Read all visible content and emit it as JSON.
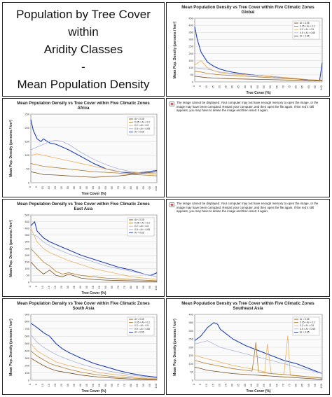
{
  "header": {
    "title_lines": [
      "Population by Tree Cover",
      "within",
      "Aridity Classes",
      "-",
      "Mean Population Density"
    ]
  },
  "error_message": "The image cannot be displayed. Your computer may not have enough memory to open the image, or the image may have been corrupted. Restart your computer, and then open the file again. If the red x still appears, you may have to delete the image and then insert it again.",
  "chart_data": [
    {
      "type": "line",
      "title": "Mean Population Density vs Tree Cover within Five Climatic Zones",
      "subtitle": "Global",
      "xlabel": "Tree Cover (%)",
      "ylabel": "Mean Pop. Density (persons / km²)",
      "xlim": [
        0,
        100
      ],
      "ylim": [
        0,
        450
      ],
      "yticks": [
        0,
        50,
        100,
        150,
        200,
        250,
        300,
        350,
        400,
        450
      ],
      "xticks": [
        0,
        5,
        10,
        15,
        20,
        25,
        30,
        35,
        40,
        45,
        50,
        55,
        60,
        65,
        70,
        75,
        80,
        85,
        90,
        95,
        100
      ],
      "grid": true,
      "legend_position": "top-right",
      "legend_entries": [
        "AI < 0.05",
        "0.05 < AI < 0.2",
        "0.2 < AI < 0.5",
        "0.5 < AI < 0.65",
        "AI > 0.65"
      ],
      "series": [
        {
          "color": "#1f3fb4",
          "x": [
            0,
            2,
            5,
            10,
            15,
            20,
            25,
            30,
            40,
            50,
            60,
            70,
            80,
            90,
            95,
            98,
            100
          ],
          "values": [
            390,
            300,
            210,
            140,
            110,
            90,
            78,
            68,
            55,
            45,
            38,
            30,
            22,
            12,
            8,
            10,
            135
          ]
        },
        {
          "color": "#aab4d8",
          "x": [
            0,
            5,
            10,
            15,
            20,
            30,
            40,
            50,
            60,
            70,
            80,
            90,
            100
          ],
          "values": [
            100,
            95,
            90,
            80,
            70,
            60,
            52,
            45,
            38,
            30,
            22,
            14,
            8
          ]
        },
        {
          "color": "#e8b060",
          "x": [
            0,
            5,
            10,
            15,
            20,
            30,
            40,
            50,
            60,
            70,
            80,
            90,
            100
          ],
          "values": [
            120,
            150,
            100,
            80,
            65,
            55,
            50,
            45,
            40,
            32,
            25,
            15,
            10
          ]
        },
        {
          "color": "#b07c2c",
          "x": [
            0,
            5,
            10,
            15,
            20,
            30,
            40,
            50,
            60,
            70,
            80,
            90,
            100
          ],
          "values": [
            75,
            70,
            60,
            55,
            50,
            45,
            40,
            35,
            30,
            25,
            20,
            15,
            12
          ]
        },
        {
          "color": "#7a5020",
          "x": [
            0,
            5,
            10,
            15,
            20,
            30,
            40,
            50,
            60,
            70,
            80,
            90,
            100
          ],
          "values": [
            40,
            35,
            30,
            28,
            25,
            22,
            20,
            18,
            16,
            14,
            12,
            10,
            8
          ]
        }
      ]
    },
    {
      "type": "line",
      "title": "Mean Population Density vs Tree Cover within Five Climatic Zones",
      "subtitle": "Africa",
      "xlabel": "Tree Cover (%)",
      "ylabel": "Mean Pop. Density (persons / km²)",
      "xlim": [
        0,
        100
      ],
      "ylim": [
        0,
        250
      ],
      "yticks": [
        0,
        50,
        100,
        150,
        200,
        250
      ],
      "xticks": [
        0,
        5,
        10,
        15,
        20,
        25,
        30,
        35,
        40,
        45,
        50,
        55,
        60,
        65,
        70,
        75,
        80,
        85,
        90,
        95,
        100
      ],
      "grid": true,
      "legend_position": "top-right",
      "legend_entries": [
        "AI < 0.05",
        "0.05 < AI < 0.2",
        "0.2 < AI < 0.5",
        "0.5 < AI < 0.65",
        "AI > 0.65"
      ],
      "series": [
        {
          "color": "#1f3fb4",
          "x": [
            0,
            2,
            5,
            8,
            10,
            15,
            20,
            25,
            30,
            40,
            50,
            60,
            70,
            80,
            90,
            100
          ],
          "values": [
            230,
            190,
            160,
            150,
            160,
            145,
            140,
            130,
            120,
            95,
            70,
            50,
            40,
            35,
            38,
            45
          ]
        },
        {
          "color": "#aab4d8",
          "x": [
            0,
            5,
            10,
            15,
            20,
            25,
            30,
            40,
            50,
            60,
            70,
            80,
            90,
            100
          ],
          "values": [
            120,
            130,
            140,
            150,
            155,
            150,
            140,
            110,
            85,
            65,
            50,
            40,
            35,
            35
          ]
        },
        {
          "color": "#e8b060",
          "x": [
            0,
            5,
            10,
            15,
            20,
            30,
            40,
            50,
            60,
            70,
            80,
            90,
            100
          ],
          "values": [
            100,
            105,
            100,
            95,
            90,
            80,
            70,
            60,
            50,
            40,
            38,
            35,
            30
          ]
        },
        {
          "color": "#b07c2c",
          "x": [
            0,
            5,
            10,
            20,
            30,
            40,
            50,
            60,
            70,
            80,
            90,
            100
          ],
          "values": [
            70,
            65,
            60,
            55,
            50,
            45,
            40,
            38,
            35,
            30,
            28,
            25
          ]
        },
        {
          "color": "#7a5020",
          "x": [
            0,
            5,
            10,
            20,
            30,
            40,
            50,
            60,
            70,
            80,
            90,
            100
          ],
          "values": [
            40,
            35,
            30,
            28,
            25,
            22,
            20,
            22,
            25,
            30,
            35,
            40
          ]
        }
      ]
    },
    {
      "type": "line",
      "title": "Mean Population Density vs Tree Cover within Five Climatic Zones",
      "subtitle": "East Asia",
      "xlabel": "Tree Cover (%)",
      "ylabel": "Mean Pop. Density (persons / km²)",
      "xlim": [
        0,
        100
      ],
      "ylim": [
        0,
        500
      ],
      "yticks": [
        0,
        50,
        100,
        150,
        200,
        250,
        300,
        350,
        400,
        450,
        500
      ],
      "xticks": [
        0,
        5,
        10,
        15,
        20,
        25,
        30,
        35,
        40,
        45,
        50,
        55,
        60,
        65,
        70,
        75,
        80,
        85,
        90,
        95,
        100
      ],
      "grid": true,
      "legend_position": "top-right",
      "legend_entries": [
        "AI < 0.05",
        "0.05 < AI < 0.2",
        "0.2 < AI < 0.5",
        "0.5 < AI < 0.65",
        "AI > 0.65"
      ],
      "series": [
        {
          "color": "#1f3fb4",
          "x": [
            0,
            3,
            5,
            10,
            15,
            20,
            25,
            30,
            40,
            50,
            60,
            70,
            80,
            90,
            95,
            100
          ],
          "values": [
            420,
            450,
            380,
            330,
            300,
            280,
            260,
            240,
            200,
            170,
            140,
            110,
            90,
            60,
            50,
            70
          ]
        },
        {
          "color": "#aab4d8",
          "x": [
            0,
            5,
            10,
            15,
            20,
            30,
            40,
            50,
            60,
            70,
            80,
            90,
            100
          ],
          "values": [
            360,
            340,
            300,
            270,
            250,
            210,
            180,
            150,
            120,
            100,
            80,
            60,
            40
          ]
        },
        {
          "color": "#e8b060",
          "x": [
            0,
            5,
            10,
            15,
            20,
            30,
            40,
            50,
            60,
            70,
            80,
            90,
            100
          ],
          "values": [
            400,
            300,
            250,
            220,
            200,
            160,
            130,
            100,
            80,
            60,
            40,
            30,
            20
          ]
        },
        {
          "color": "#b07c2c",
          "x": [
            0,
            5,
            10,
            15,
            20,
            25,
            30,
            40,
            50,
            60,
            70,
            80,
            90,
            100
          ],
          "values": [
            250,
            200,
            150,
            120,
            80,
            60,
            70,
            50,
            40,
            30,
            25,
            20,
            15,
            10
          ]
        },
        {
          "color": "#7a5020",
          "x": [
            0,
            5,
            10,
            15,
            20,
            25,
            30,
            35,
            40,
            50,
            60,
            70,
            80,
            90,
            100
          ],
          "values": [
            150,
            100,
            60,
            90,
            50,
            40,
            60,
            45,
            30,
            20,
            15,
            12,
            10,
            8,
            5
          ]
        }
      ]
    },
    {
      "type": "line",
      "title": "Mean Population Density vs Tree Cover within Five Climatic Zones",
      "subtitle": "South Asia",
      "xlabel": "Tree Cover (%)",
      "ylabel": "Mean Pop. Density (persons / km²)",
      "xlim": [
        0,
        100
      ],
      "ylim": [
        0,
        900
      ],
      "yticks": [
        0,
        100,
        200,
        300,
        400,
        500,
        600,
        700,
        800,
        900
      ],
      "xticks": [
        0,
        5,
        10,
        15,
        20,
        25,
        30,
        35,
        40,
        45,
        50,
        55,
        60,
        65,
        70,
        75,
        80,
        85,
        90,
        95,
        100
      ],
      "grid": true,
      "legend_position": "top-right",
      "legend_entries": [
        "AI < 0.05",
        "0.05 < AI < 0.2",
        "0.2 < AI < 0.5",
        "0.5 < AI < 0.65",
        "AI > 0.65"
      ],
      "series": [
        {
          "color": "#1f3fb4",
          "x": [
            0,
            5,
            10,
            15,
            20,
            25,
            30,
            40,
            50,
            60,
            70,
            80,
            90,
            100
          ],
          "values": [
            780,
            720,
            650,
            600,
            500,
            430,
            380,
            300,
            230,
            180,
            130,
            90,
            60,
            40
          ]
        },
        {
          "color": "#aab4d8",
          "x": [
            0,
            5,
            10,
            15,
            20,
            30,
            40,
            50,
            60,
            70,
            80,
            90,
            100
          ],
          "values": [
            620,
            520,
            450,
            400,
            350,
            280,
            220,
            170,
            130,
            100,
            70,
            50,
            30
          ]
        },
        {
          "color": "#e8b060",
          "x": [
            0,
            5,
            10,
            15,
            20,
            30,
            40,
            50,
            60,
            70,
            80,
            90,
            100
          ],
          "values": [
            500,
            400,
            350,
            300,
            250,
            200,
            160,
            120,
            90,
            70,
            50,
            30,
            20
          ]
        },
        {
          "color": "#b07c2c",
          "x": [
            0,
            5,
            10,
            15,
            20,
            30,
            40,
            50,
            60,
            70,
            80,
            90,
            100
          ],
          "values": [
            400,
            330,
            280,
            230,
            200,
            150,
            110,
            80,
            60,
            40,
            30,
            20,
            10
          ]
        },
        {
          "color": "#7a5020",
          "x": [
            0,
            5,
            10,
            15,
            20,
            30,
            40,
            50,
            60,
            70,
            80,
            90,
            100
          ],
          "values": [
            300,
            250,
            200,
            160,
            130,
            100,
            70,
            50,
            35,
            25,
            15,
            10,
            5
          ]
        }
      ]
    },
    {
      "type": "line",
      "title": "Mean Population Density vs Tree Cover within Five Climatic Zones",
      "subtitle": "Southeast Asia",
      "xlabel": "Tree Cover (%)",
      "ylabel": "Mean Pop. Density (persons / km²)",
      "xlim": [
        0,
        100
      ],
      "ylim": [
        0,
        400
      ],
      "yticks": [
        0,
        50,
        100,
        150,
        200,
        250,
        300,
        350,
        400
      ],
      "xticks": [
        0,
        5,
        10,
        15,
        20,
        25,
        30,
        35,
        40,
        45,
        50,
        55,
        60,
        65,
        70,
        75,
        80,
        85,
        90,
        95,
        100
      ],
      "grid": true,
      "legend_position": "top-right",
      "legend_entries": [
        "AI < 0.05",
        "0.05 < AI < 0.2",
        "0.2 < AI < 0.5",
        "0.5 < AI < 0.65",
        "AI > 0.65"
      ],
      "series": [
        {
          "color": "#1f3fb4",
          "x": [
            0,
            5,
            10,
            15,
            18,
            20,
            25,
            30,
            40,
            50,
            60,
            70,
            80,
            90,
            100
          ],
          "values": [
            240,
            270,
            320,
            350,
            340,
            310,
            280,
            250,
            210,
            180,
            150,
            120,
            100,
            70,
            40
          ]
        },
        {
          "color": "#aab4d8",
          "x": [
            0,
            5,
            10,
            15,
            20,
            30,
            40,
            50,
            60,
            70,
            80,
            90,
            100
          ],
          "values": [
            220,
            230,
            240,
            220,
            200,
            180,
            160,
            140,
            120,
            100,
            80,
            60,
            40
          ]
        },
        {
          "color": "#e8b060",
          "x": [
            0,
            5,
            10,
            20,
            30,
            40,
            50,
            55,
            57,
            60,
            70,
            73,
            75,
            80,
            90,
            100
          ],
          "values": [
            150,
            140,
            130,
            110,
            90,
            75,
            60,
            50,
            220,
            40,
            35,
            270,
            30,
            25,
            20,
            15
          ]
        },
        {
          "color": "#b07c2c",
          "x": [
            0,
            5,
            10,
            20,
            30,
            40,
            45,
            48,
            50,
            55,
            60,
            70,
            80,
            90,
            100
          ],
          "values": [
            120,
            110,
            100,
            85,
            70,
            60,
            55,
            230,
            50,
            45,
            40,
            35,
            28,
            20,
            12
          ]
        },
        {
          "color": "#7a5020",
          "x": [
            0,
            5,
            10,
            20,
            30,
            40,
            50,
            60,
            70,
            80,
            90,
            100
          ],
          "values": [
            80,
            70,
            60,
            50,
            40,
            35,
            30,
            25,
            20,
            15,
            10,
            5
          ]
        }
      ]
    }
  ]
}
